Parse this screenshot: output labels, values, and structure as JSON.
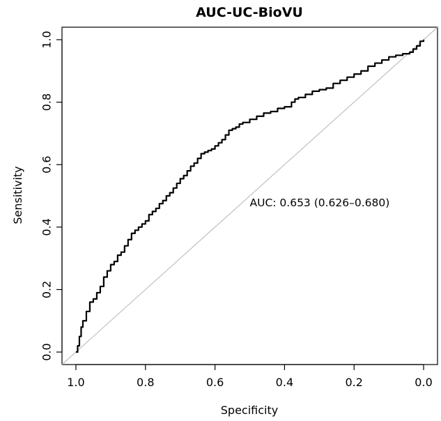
{
  "chart_data": {
    "type": "line",
    "title": "AUC-UC-BioVU",
    "xlabel": "Specificity",
    "ylabel": "Sensitivity",
    "x_reversed": true,
    "xlim": [
      1.04,
      -0.04
    ],
    "ylim": [
      -0.04,
      1.04
    ],
    "x_ticks": [
      {
        "value": 1.0,
        "label": "1.0"
      },
      {
        "value": 0.8,
        "label": "0.8"
      },
      {
        "value": 0.6,
        "label": "0.6"
      },
      {
        "value": 0.4,
        "label": "0.4"
      },
      {
        "value": 0.2,
        "label": "0.2"
      },
      {
        "value": 0.0,
        "label": "0.0"
      }
    ],
    "y_ticks": [
      {
        "value": 0.0,
        "label": "0.0"
      },
      {
        "value": 0.2,
        "label": "0.2"
      },
      {
        "value": 0.4,
        "label": "0.4"
      },
      {
        "value": 0.6,
        "label": "0.6"
      },
      {
        "value": 0.8,
        "label": "0.8"
      },
      {
        "value": 1.0,
        "label": "1.0"
      }
    ],
    "grid": false,
    "annotation": {
      "text": "AUC: 0.653 (0.626–0.680)",
      "x": 0.5,
      "y": 0.48
    },
    "reference_line": {
      "points": [
        [
          1.04,
          -0.04
        ],
        [
          -0.04,
          1.04
        ]
      ],
      "color": "#c0c0c0"
    },
    "curve_color": "#000000",
    "series": [
      {
        "x": [
          1.0,
          0.995,
          0.99,
          0.985,
          0.98,
          0.97,
          0.96,
          0.95,
          0.94,
          0.93,
          0.92,
          0.91,
          0.9,
          0.89,
          0.88,
          0.87,
          0.86,
          0.85,
          0.84,
          0.83,
          0.82,
          0.81,
          0.8,
          0.79,
          0.78,
          0.77,
          0.76,
          0.75,
          0.74,
          0.73,
          0.72,
          0.71,
          0.7,
          0.69,
          0.68,
          0.67,
          0.66,
          0.65,
          0.64,
          0.63,
          0.62,
          0.61,
          0.6,
          0.59,
          0.58,
          0.57,
          0.56,
          0.55,
          0.54,
          0.53,
          0.52,
          0.5,
          0.48,
          0.46,
          0.44,
          0.42,
          0.4,
          0.38,
          0.37,
          0.36,
          0.34,
          0.32,
          0.3,
          0.28,
          0.26,
          0.24,
          0.22,
          0.2,
          0.18,
          0.16,
          0.14,
          0.12,
          0.1,
          0.08,
          0.06,
          0.04,
          0.03,
          0.02,
          0.01,
          0.0
        ],
        "y": [
          0.0,
          0.02,
          0.05,
          0.08,
          0.1,
          0.13,
          0.16,
          0.17,
          0.19,
          0.21,
          0.24,
          0.26,
          0.28,
          0.29,
          0.31,
          0.32,
          0.34,
          0.36,
          0.38,
          0.39,
          0.4,
          0.41,
          0.42,
          0.44,
          0.45,
          0.46,
          0.475,
          0.485,
          0.5,
          0.51,
          0.525,
          0.54,
          0.555,
          0.565,
          0.58,
          0.595,
          0.605,
          0.62,
          0.635,
          0.64,
          0.645,
          0.65,
          0.66,
          0.67,
          0.68,
          0.695,
          0.71,
          0.715,
          0.72,
          0.73,
          0.735,
          0.745,
          0.755,
          0.765,
          0.77,
          0.78,
          0.785,
          0.8,
          0.81,
          0.815,
          0.825,
          0.835,
          0.84,
          0.845,
          0.86,
          0.87,
          0.88,
          0.89,
          0.9,
          0.915,
          0.925,
          0.935,
          0.945,
          0.95,
          0.955,
          0.96,
          0.97,
          0.98,
          0.995,
          1.0
        ]
      }
    ]
  }
}
